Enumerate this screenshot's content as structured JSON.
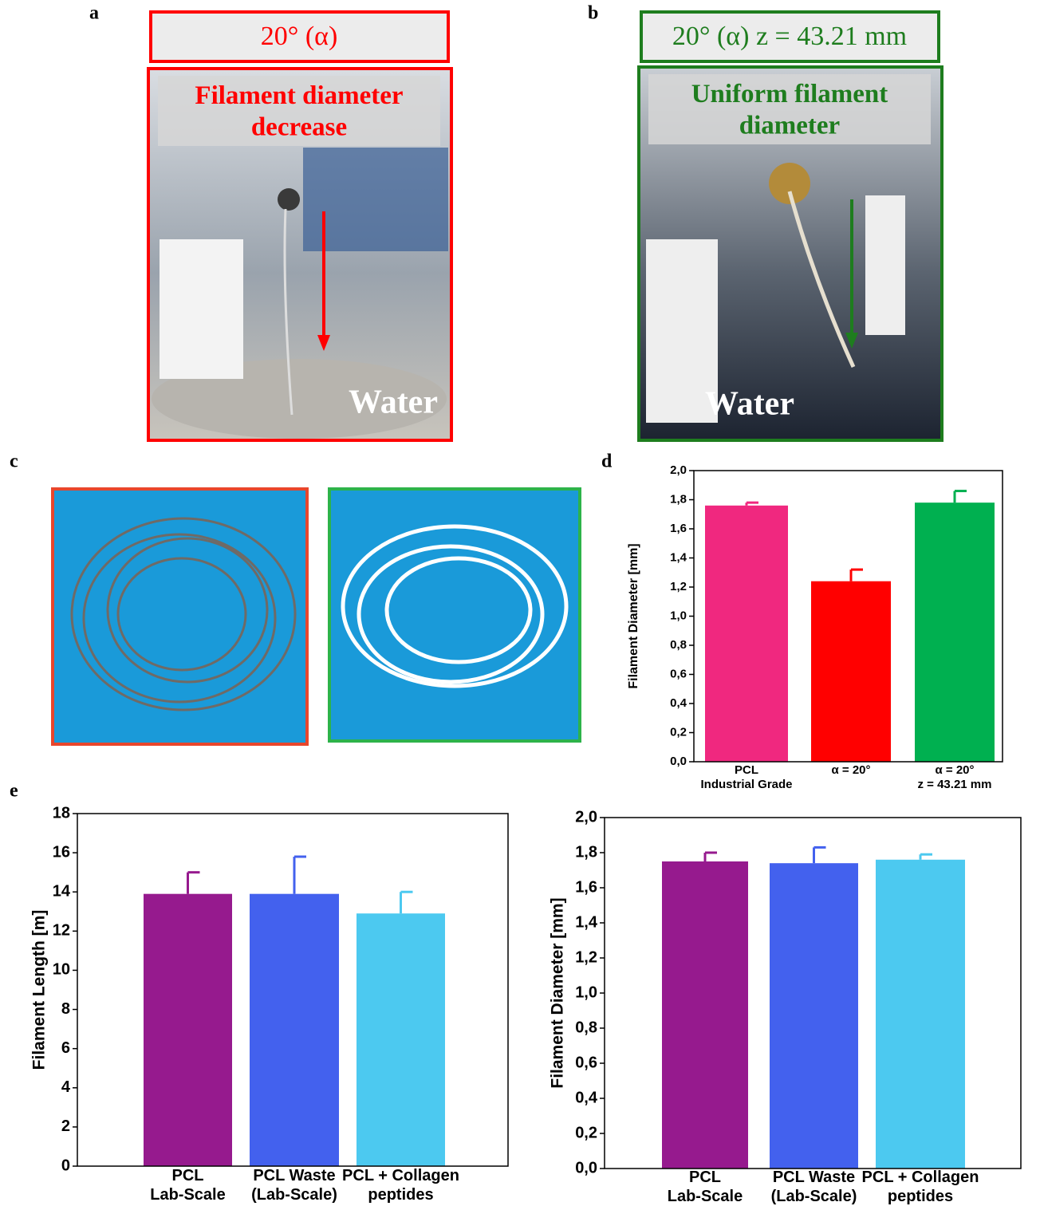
{
  "figure": {
    "letters": [
      "a",
      "b",
      "c",
      "d",
      "e"
    ],
    "a": {
      "header": "20° (α)",
      "caption": "Filament diameter\ndecrease",
      "water": "Water"
    },
    "b": {
      "header": "20° (α)  z = 43.21 mm",
      "caption": "Uniform filament\ndiameter",
      "water": "Water"
    }
  },
  "chart_data": [
    {
      "type": "bar",
      "y_label": "Filament Diameter [mm]",
      "categories": [
        "PCL\nIndustrial Grade",
        "α = 20°",
        "α = 20°\nz = 43.21 mm"
      ],
      "values": [
        1.76,
        1.24,
        1.78
      ],
      "errors": [
        0.02,
        0.08,
        0.08
      ],
      "colors": [
        "#f0287f",
        "#ff0000",
        "#00b050"
      ],
      "ylim": [
        0,
        2.0
      ],
      "yticks": [
        {
          "value": 0,
          "label": "0,0"
        },
        {
          "value": 0.2,
          "label": "0,2"
        },
        {
          "value": 0.4,
          "label": "0,4"
        },
        {
          "value": 0.6,
          "label": "0,6"
        },
        {
          "value": 0.8,
          "label": "0,8"
        },
        {
          "value": 1.0,
          "label": "1,0"
        },
        {
          "value": 1.2,
          "label": "1,2"
        },
        {
          "value": 1.4,
          "label": "1,4"
        },
        {
          "value": 1.6,
          "label": "1,6"
        },
        {
          "value": 1.8,
          "label": "1,8"
        },
        {
          "value": 2.0,
          "label": "2,0"
        }
      ],
      "grid": false
    },
    {
      "type": "bar",
      "y_label": "Filament Length [m]",
      "categories": [
        "PCL\nLab-Scale",
        "PCL Waste\n(Lab-Scale)",
        "PCL + Collagen\npeptides"
      ],
      "values": [
        13.9,
        13.9,
        12.9
      ],
      "errors": [
        1.1,
        1.9,
        1.1
      ],
      "colors": [
        "#961a8e",
        "#4361ee",
        "#4cc9f0"
      ],
      "ylim": [
        0,
        18
      ],
      "yticks": [
        0,
        2,
        4,
        6,
        8,
        10,
        12,
        14,
        16,
        18
      ],
      "grid": false
    },
    {
      "type": "bar",
      "y_label": "Filament Diameter [mm]",
      "categories": [
        "PCL\nLab-Scale",
        "PCL Waste\n(Lab-Scale)",
        "PCL + Collagen\npeptides"
      ],
      "values": [
        1.75,
        1.74,
        1.76
      ],
      "errors": [
        0.05,
        0.09,
        0.03
      ],
      "colors": [
        "#961a8e",
        "#4361ee",
        "#4cc9f0"
      ],
      "ylim": [
        0,
        2.0
      ],
      "yticks": [
        {
          "value": 0,
          "label": "0,0"
        },
        {
          "value": 0.2,
          "label": "0,2"
        },
        {
          "value": 0.4,
          "label": "0,4"
        },
        {
          "value": 0.6,
          "label": "0,6"
        },
        {
          "value": 0.8,
          "label": "0,8"
        },
        {
          "value": 1.0,
          "label": "1,0"
        },
        {
          "value": 1.2,
          "label": "1,2"
        },
        {
          "value": 1.4,
          "label": "1,4"
        },
        {
          "value": 1.6,
          "label": "1,6"
        },
        {
          "value": 1.8,
          "label": "1,8"
        },
        {
          "value": 2.0,
          "label": "2,0"
        }
      ],
      "grid": false
    }
  ]
}
